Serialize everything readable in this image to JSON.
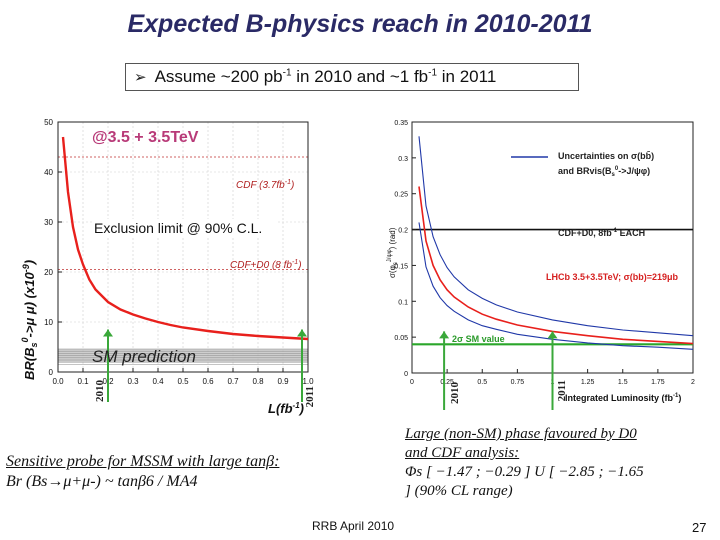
{
  "title": "Expected B-physics reach in 2010-2011",
  "bullet": {
    "parts": [
      "Assume ~200 pb",
      "-1",
      " in 2010 and ~1 fb",
      "-1",
      " in 2011"
    ]
  },
  "left_plot": {
    "annotation_energy": "@3.5 + 3.5TeV",
    "annotation_cdf_37": "CDF (3.7fb",
    "annotation_cdf_37_sup": "-1",
    "annotation_cdf_37_close": ")",
    "annotation_cdf_8": "CDF+D0 (8 fb",
    "annotation_cdf_8_sup": "-1",
    "annotation_cdf_8_close": ")",
    "annotation_exclusion": "Exclusion limit @ 90% C.L.",
    "annotation_sm": "SM prediction",
    "ylabel": "BR(B",
    "ylabel_sub": "s",
    "ylabel_sup": "0",
    "ylabel_rest": "->μ μ) (x10",
    "ylabel_exp": "-9",
    "ylabel_close": ")",
    "xlabel": "L(fb",
    "xlabel_sup": "-1",
    "xlabel_close": ")",
    "x_ticks": [
      "0.0",
      "0.1",
      "0.2",
      "0.3",
      "0.4",
      "0.5",
      "0.6",
      "0.7",
      "0.8",
      "0.9",
      "1.0"
    ],
    "y_ticks": [
      "0",
      "10",
      "20",
      "30",
      "40",
      "50"
    ],
    "year_2010": "2010",
    "year_2011": "2011"
  },
  "right_plot": {
    "legend_line1": "Uncertainties on σ(bb̄)",
    "legend_line2": "and BRvis(B",
    "legend_line2_sub": "s",
    "legend_line2_sup": "0",
    "legend_line2_rest": "->J/ψφ)",
    "annotation_cdf": "CDF+D0, 8fb",
    "annotation_cdf_sup": "-1",
    "annotation_cdf_rest": " EACH",
    "annotation_lhcb": "LHCb 3.5+3.5TeV; σ(bb)=219μb",
    "annotation_sm": "2σ SM value",
    "ylabel": "σ(φ",
    "ylabel_sub": "s",
    "ylabel_sup": "J/ψφ",
    "ylabel_rest": ") (rad)",
    "xlabel": "Integrated Luminosity (fb",
    "xlabel_sup": "-1",
    "xlabel_close": ")",
    "x_ticks": [
      "0",
      "0.25",
      "0.5",
      "0.75",
      "1",
      "1.25",
      "1.5",
      "1.75",
      "2"
    ],
    "y_ticks": [
      "0",
      "0.05",
      "0.1",
      "0.15",
      "0.2",
      "0.25",
      "0.3",
      "0.35"
    ],
    "year_2010": "2010",
    "year_2011": "2011"
  },
  "left_text": {
    "line1": "Sensitive probe for MSSM with large tanβ:",
    "line2": "Br (Bs→μ+μ-) ~  tanβ6 / MA4"
  },
  "right_text": {
    "line1": "Large (non-SM) phase favoured by   D0",
    "line2": "and CDF analysis:",
    "line3": "Φs [ −1.47 ; −0.29 ]  U [ −2.85 ; −1.65",
    "line4": "]        (90% CL range)"
  },
  "footer": "RRB April 2010",
  "page_number": "27",
  "chart_data": [
    {
      "type": "line",
      "xlabel": "L(fb-1)",
      "ylabel": "BR(Bs0->μ μ) (x10-9)",
      "xlim": [
        0,
        1.0
      ],
      "ylim": [
        0,
        50
      ],
      "series": [
        {
          "name": "Exclusion limit @ 90% C.L.",
          "color": "#e8201c",
          "x": [
            0.02,
            0.04,
            0.06,
            0.08,
            0.1,
            0.125,
            0.15,
            0.2,
            0.25,
            0.3,
            0.35,
            0.4,
            0.45,
            0.5,
            0.6,
            0.7,
            0.8,
            0.9,
            1.0
          ],
          "y": [
            47,
            36,
            29,
            24.5,
            21.5,
            18.5,
            16.5,
            14,
            12.5,
            11.5,
            10.7,
            10,
            9.4,
            8.9,
            8.2,
            7.6,
            7.2,
            6.9,
            6.6
          ]
        }
      ],
      "reference_levels": [
        {
          "name": "CDF (3.7fb-1)",
          "y": 43
        },
        {
          "name": "CDF+D0 (8 fb-1)",
          "y": 20.5
        },
        {
          "name": "SM prediction",
          "y": 3.3
        }
      ],
      "markers": [
        {
          "name": "2010",
          "x": 0.2
        },
        {
          "name": "2011",
          "x": 1.0
        }
      ]
    },
    {
      "type": "line",
      "xlabel": "Integrated Luminosity (fb-1)",
      "ylabel": "σ(φs J/ψφ) (rad)",
      "xlim": [
        0,
        2
      ],
      "ylim": [
        0,
        0.35
      ],
      "series": [
        {
          "name": "LHCb 3.5+3.5TeV; σ(bb)=219μb",
          "color": "#e8201c",
          "x": [
            0.05,
            0.1,
            0.15,
            0.2,
            0.25,
            0.3,
            0.4,
            0.5,
            0.6,
            0.75,
            1.0,
            1.25,
            1.5,
            1.75,
            2.0
          ],
          "y": [
            0.26,
            0.184,
            0.15,
            0.13,
            0.116,
            0.106,
            0.092,
            0.082,
            0.075,
            0.067,
            0.058,
            0.052,
            0.047,
            0.044,
            0.041
          ]
        },
        {
          "name": "upper uncertainty",
          "color": "#2038a8",
          "x": [
            0.05,
            0.1,
            0.15,
            0.2,
            0.25,
            0.3,
            0.4,
            0.5,
            0.6,
            0.75,
            1.0,
            1.25,
            1.5,
            1.75,
            2.0
          ],
          "y": [
            0.33,
            0.233,
            0.19,
            0.165,
            0.147,
            0.134,
            0.116,
            0.104,
            0.095,
            0.085,
            0.074,
            0.066,
            0.06,
            0.056,
            0.052
          ]
        },
        {
          "name": "lower uncertainty",
          "color": "#2038a8",
          "x": [
            0.05,
            0.1,
            0.15,
            0.2,
            0.25,
            0.3,
            0.4,
            0.5,
            0.6,
            0.75,
            1.0,
            1.25,
            1.5,
            1.75,
            2.0
          ],
          "y": [
            0.21,
            0.148,
            0.121,
            0.105,
            0.094,
            0.086,
            0.074,
            0.066,
            0.061,
            0.054,
            0.047,
            0.042,
            0.038,
            0.036,
            0.033
          ]
        }
      ],
      "reference_levels": [
        {
          "name": "CDF+D0, 8fb-1 EACH",
          "y": 0.2
        },
        {
          "name": "2σ SM value",
          "y": 0.04
        }
      ],
      "markers": [
        {
          "name": "2010",
          "x": 0.2
        },
        {
          "name": "2011",
          "x": 1.0
        }
      ]
    }
  ]
}
